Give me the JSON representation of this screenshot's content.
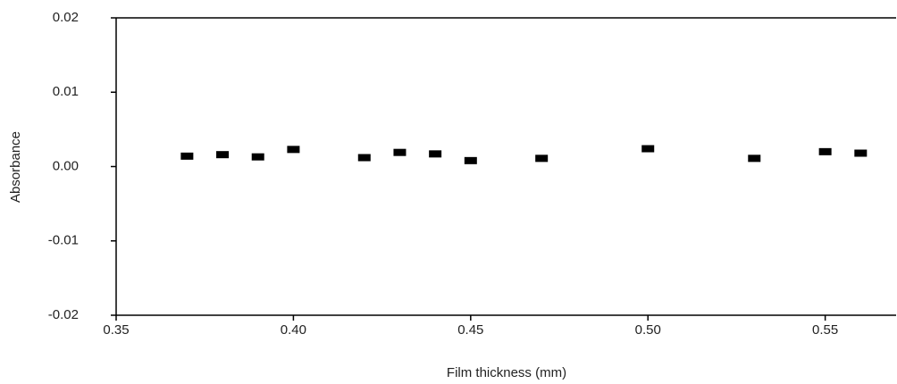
{
  "chart_data": {
    "type": "scatter",
    "x_label": "Film thickness (mm)",
    "y_label": "Absorbance",
    "series": [
      {
        "name": "Absorbance",
        "color": "#000000",
        "x": [
          0.37,
          0.38,
          0.39,
          0.4,
          0.42,
          0.43,
          0.44,
          0.45,
          0.47,
          0.5,
          0.53,
          0.55,
          0.56
        ],
        "values": [
          0.0014,
          0.0016,
          0.0013,
          0.0023,
          0.0012,
          0.0019,
          0.0017,
          0.0008,
          0.0011,
          0.0024,
          0.0011,
          0.002,
          0.0018
        ]
      }
    ],
    "xlim": [
      0.35,
      0.57
    ],
    "xticks": [
      0.35,
      {
        "value": 0.4,
        "label": "0.40"
      },
      0.45,
      {
        "value": 0.5,
        "label": "0.50"
      },
      0.55
    ],
    "ylim": [
      -0.02,
      0.02
    ],
    "yticks": [
      -0.02,
      -0.01,
      {
        "value": 0,
        "label": "0.00"
      },
      0.01,
      0.02
    ],
    "grid": false
  }
}
